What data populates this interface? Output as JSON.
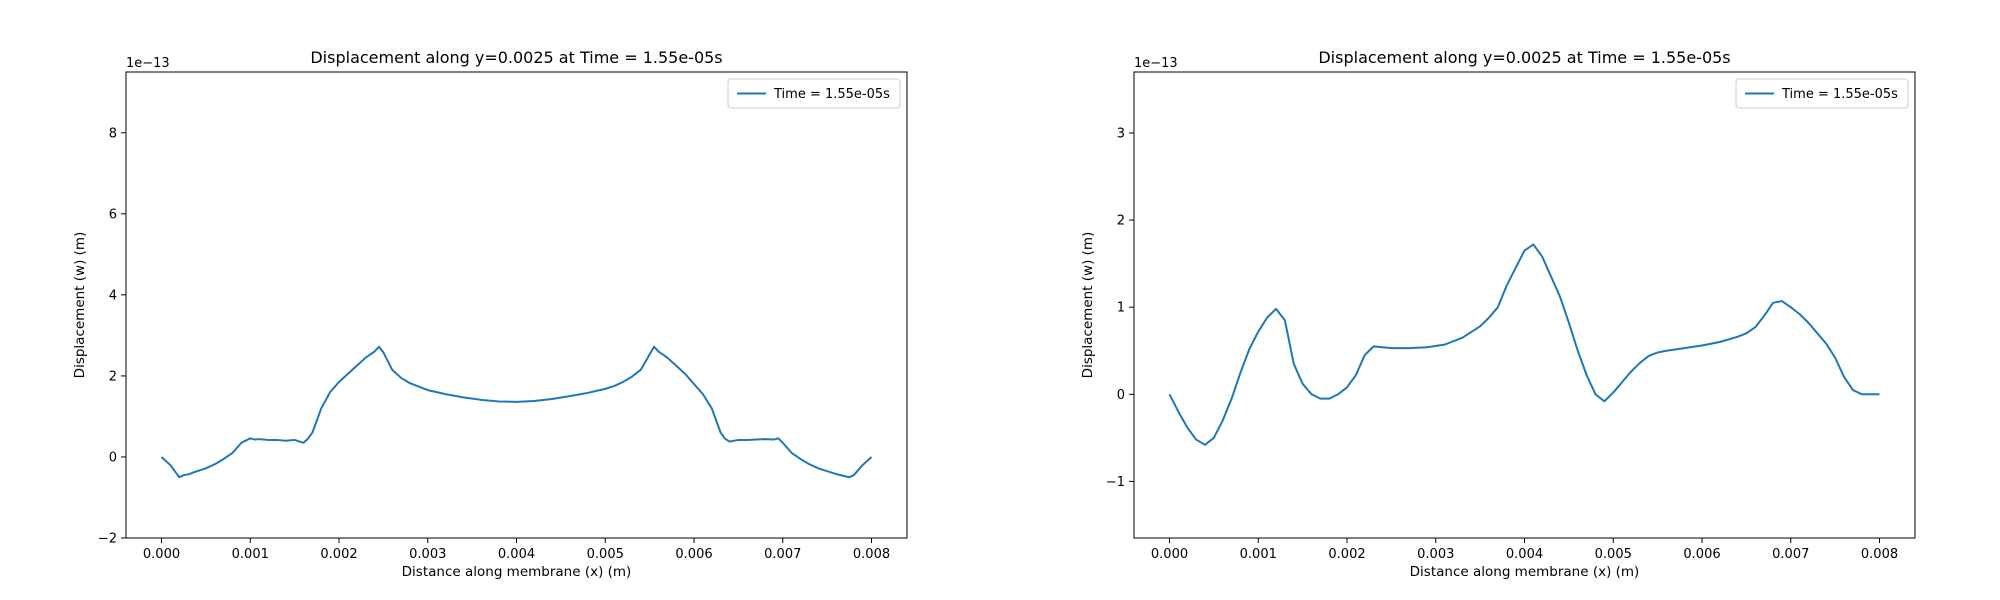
{
  "chart_data": [
    {
      "type": "line",
      "title": "Displacement along y=0.0025 at Time = 1.55e-05s",
      "xlabel": "Distance along membrane (x) (m)",
      "ylabel": "Displacement (w) (m)",
      "y_multiplier": "1e−13",
      "xlim": [
        -0.0004,
        0.0084
      ],
      "ylim": [
        -2,
        9.5
      ],
      "xticks": [
        0.0,
        0.001,
        0.002,
        0.003,
        0.004,
        0.005,
        0.006,
        0.007,
        0.008
      ],
      "xtick_labels": [
        "0.000",
        "0.001",
        "0.002",
        "0.003",
        "0.004",
        "0.005",
        "0.006",
        "0.007",
        "0.008"
      ],
      "yticks": [
        -2,
        0,
        2,
        4,
        6,
        8
      ],
      "ytick_labels": [
        "−2",
        "0",
        "2",
        "4",
        "6",
        "8"
      ],
      "grid": false,
      "legend": "upper right",
      "series": [
        {
          "name": "Time = 1.55e-05s",
          "color": "#1f77b4",
          "x": [
            0.0,
            0.0001,
            0.0002,
            0.00025,
            0.0003,
            0.0004,
            0.0005,
            0.0006,
            0.0007,
            0.0008,
            0.0009,
            0.001,
            0.00105,
            0.0011,
            0.0012,
            0.0013,
            0.0014,
            0.0015,
            0.0016,
            0.00165,
            0.0017,
            0.0018,
            0.0019,
            0.002,
            0.0021,
            0.0022,
            0.0023,
            0.0024,
            0.00245,
            0.0025,
            0.0026,
            0.0027,
            0.0028,
            0.003,
            0.0032,
            0.0034,
            0.0036,
            0.0038,
            0.004,
            0.0042,
            0.0044,
            0.0046,
            0.0048,
            0.005,
            0.0051,
            0.0052,
            0.0053,
            0.0054,
            0.00555,
            0.0056,
            0.0057,
            0.0058,
            0.0059,
            0.006,
            0.0061,
            0.0062,
            0.0063,
            0.00635,
            0.0064,
            0.0065,
            0.0066,
            0.0067,
            0.0068,
            0.0069,
            0.00695,
            0.007,
            0.0071,
            0.0072,
            0.0073,
            0.0074,
            0.0075,
            0.0076,
            0.00775,
            0.0078,
            0.0079,
            0.008
          ],
          "y": [
            0.0,
            -0.2,
            -0.5,
            -0.45,
            -0.43,
            -0.35,
            -0.28,
            -0.18,
            -0.05,
            0.1,
            0.35,
            0.46,
            0.43,
            0.44,
            0.42,
            0.42,
            0.4,
            0.42,
            0.35,
            0.45,
            0.6,
            1.2,
            1.6,
            1.85,
            2.05,
            2.25,
            2.45,
            2.6,
            2.72,
            2.58,
            2.15,
            1.95,
            1.82,
            1.65,
            1.55,
            1.47,
            1.41,
            1.37,
            1.36,
            1.38,
            1.43,
            1.5,
            1.58,
            1.68,
            1.75,
            1.85,
            1.98,
            2.15,
            2.72,
            2.6,
            2.45,
            2.25,
            2.05,
            1.8,
            1.55,
            1.2,
            0.6,
            0.45,
            0.38,
            0.42,
            0.42,
            0.43,
            0.44,
            0.43,
            0.46,
            0.35,
            0.1,
            -0.05,
            -0.18,
            -0.28,
            -0.35,
            -0.42,
            -0.5,
            -0.45,
            -0.2,
            0.0
          ]
        }
      ]
    },
    {
      "type": "line",
      "title": "Displacement along y=0.0025 at Time = 1.55e-05s",
      "xlabel": "Distance along membrane (x) (m)",
      "ylabel": "Displacement (w) (m)",
      "y_multiplier": "1e−13",
      "xlim": [
        -0.0004,
        0.0084
      ],
      "ylim": [
        -1.65,
        3.7
      ],
      "xticks": [
        0.0,
        0.001,
        0.002,
        0.003,
        0.004,
        0.005,
        0.006,
        0.007,
        0.008
      ],
      "xtick_labels": [
        "0.000",
        "0.001",
        "0.002",
        "0.003",
        "0.004",
        "0.005",
        "0.006",
        "0.007",
        "0.008"
      ],
      "yticks": [
        -1,
        0,
        1,
        2,
        3
      ],
      "ytick_labels": [
        "−1",
        "0",
        "1",
        "2",
        "3"
      ],
      "grid": false,
      "legend": "upper right",
      "series": [
        {
          "name": "Time = 1.55e-05s",
          "color": "#1f77b4",
          "x": [
            0.0,
            0.0001,
            0.0002,
            0.0003,
            0.0004,
            0.0005,
            0.0006,
            0.0007,
            0.0008,
            0.0009,
            0.001,
            0.0011,
            0.0012,
            0.0013,
            0.0014,
            0.0015,
            0.0016,
            0.0017,
            0.0018,
            0.0019,
            0.002,
            0.0021,
            0.0022,
            0.0023,
            0.0024,
            0.0025,
            0.0027,
            0.0029,
            0.0031,
            0.0033,
            0.0035,
            0.0036,
            0.0037,
            0.0038,
            0.0039,
            0.004,
            0.0041,
            0.0042,
            0.0043,
            0.0044,
            0.0045,
            0.0046,
            0.0047,
            0.0048,
            0.0049,
            0.005,
            0.0051,
            0.0052,
            0.0053,
            0.0054,
            0.0055,
            0.0056,
            0.0058,
            0.006,
            0.0062,
            0.0064,
            0.0065,
            0.0066,
            0.0067,
            0.0068,
            0.0069,
            0.007,
            0.0071,
            0.0072,
            0.0073,
            0.0074,
            0.0075,
            0.0076,
            0.0077,
            0.0078,
            0.0079,
            0.008
          ],
          "y": [
            0.0,
            -0.2,
            -0.38,
            -0.52,
            -0.58,
            -0.5,
            -0.3,
            -0.05,
            0.25,
            0.52,
            0.72,
            0.88,
            0.98,
            0.85,
            0.35,
            0.12,
            0.0,
            -0.05,
            -0.05,
            0.0,
            0.08,
            0.22,
            0.45,
            0.55,
            0.54,
            0.53,
            0.53,
            0.54,
            0.57,
            0.65,
            0.78,
            0.88,
            1.0,
            1.25,
            1.45,
            1.65,
            1.72,
            1.58,
            1.35,
            1.12,
            0.82,
            0.5,
            0.22,
            0.0,
            -0.08,
            0.02,
            0.14,
            0.26,
            0.36,
            0.44,
            0.48,
            0.5,
            0.53,
            0.56,
            0.6,
            0.66,
            0.7,
            0.77,
            0.9,
            1.05,
            1.07,
            1.0,
            0.92,
            0.82,
            0.7,
            0.58,
            0.42,
            0.2,
            0.05,
            0.0,
            0.0,
            0.0
          ]
        }
      ]
    }
  ]
}
